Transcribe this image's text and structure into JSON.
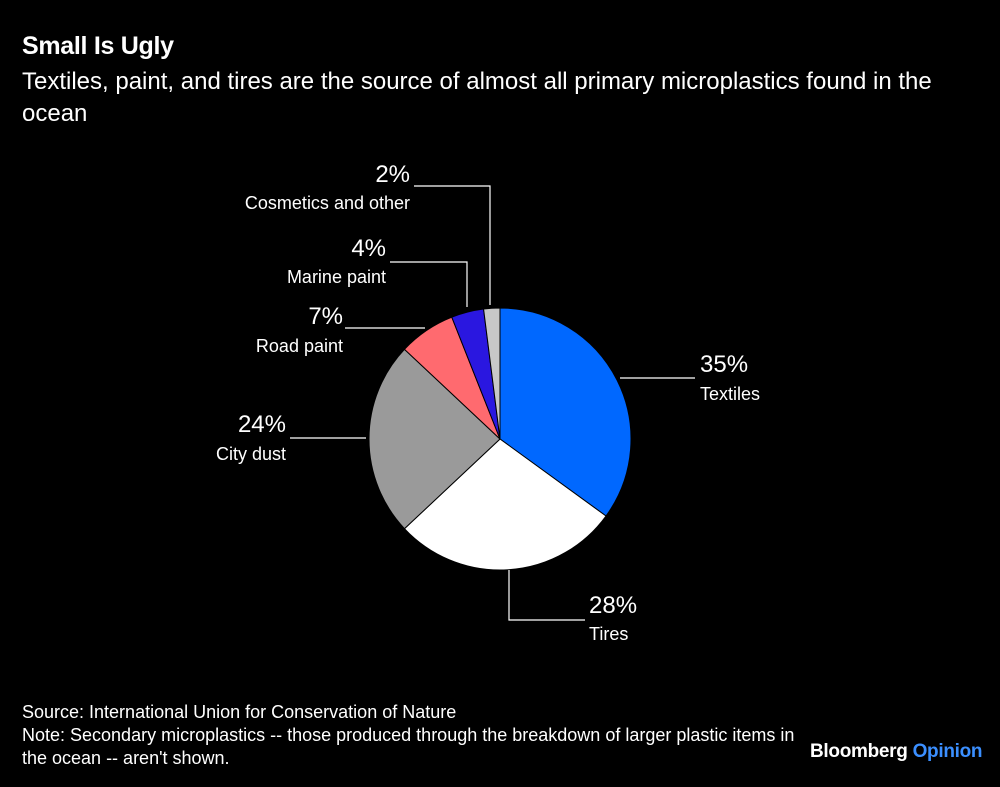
{
  "header": {
    "title": "Small Is Ugly",
    "subtitle": "Textiles, paint, and tires are the source of almost all primary microplastics found in the ocean"
  },
  "chart_data": {
    "type": "pie",
    "title": "Small Is Ugly",
    "subtitle": "Textiles, paint, and tires are the source of almost all primary microplastics found in the ocean",
    "unit": "%",
    "slices": [
      {
        "name": "Textiles",
        "value": 35,
        "label": "35%",
        "color": "#0068ff"
      },
      {
        "name": "Tires",
        "value": 28,
        "label": "28%",
        "color": "#ffffff"
      },
      {
        "name": "City dust",
        "value": 24,
        "label": "24%",
        "color": "#9a9a9a"
      },
      {
        "name": "Road paint",
        "value": 7,
        "label": "7%",
        "color": "#ff6a6f"
      },
      {
        "name": "Marine paint",
        "value": 4,
        "label": "4%",
        "color": "#2a17e0"
      },
      {
        "name": "Cosmetics and other",
        "value": 2,
        "label": "2%",
        "color": "#c8c8c8"
      }
    ]
  },
  "footer": {
    "source": "Source: International Union for Conservation of Nature",
    "note": "Note: Secondary microplastics -- those produced through the breakdown of larger plastic items in the ocean -- aren't shown."
  },
  "brand": {
    "part1": "Bloomberg",
    "part2": "Opinion"
  }
}
